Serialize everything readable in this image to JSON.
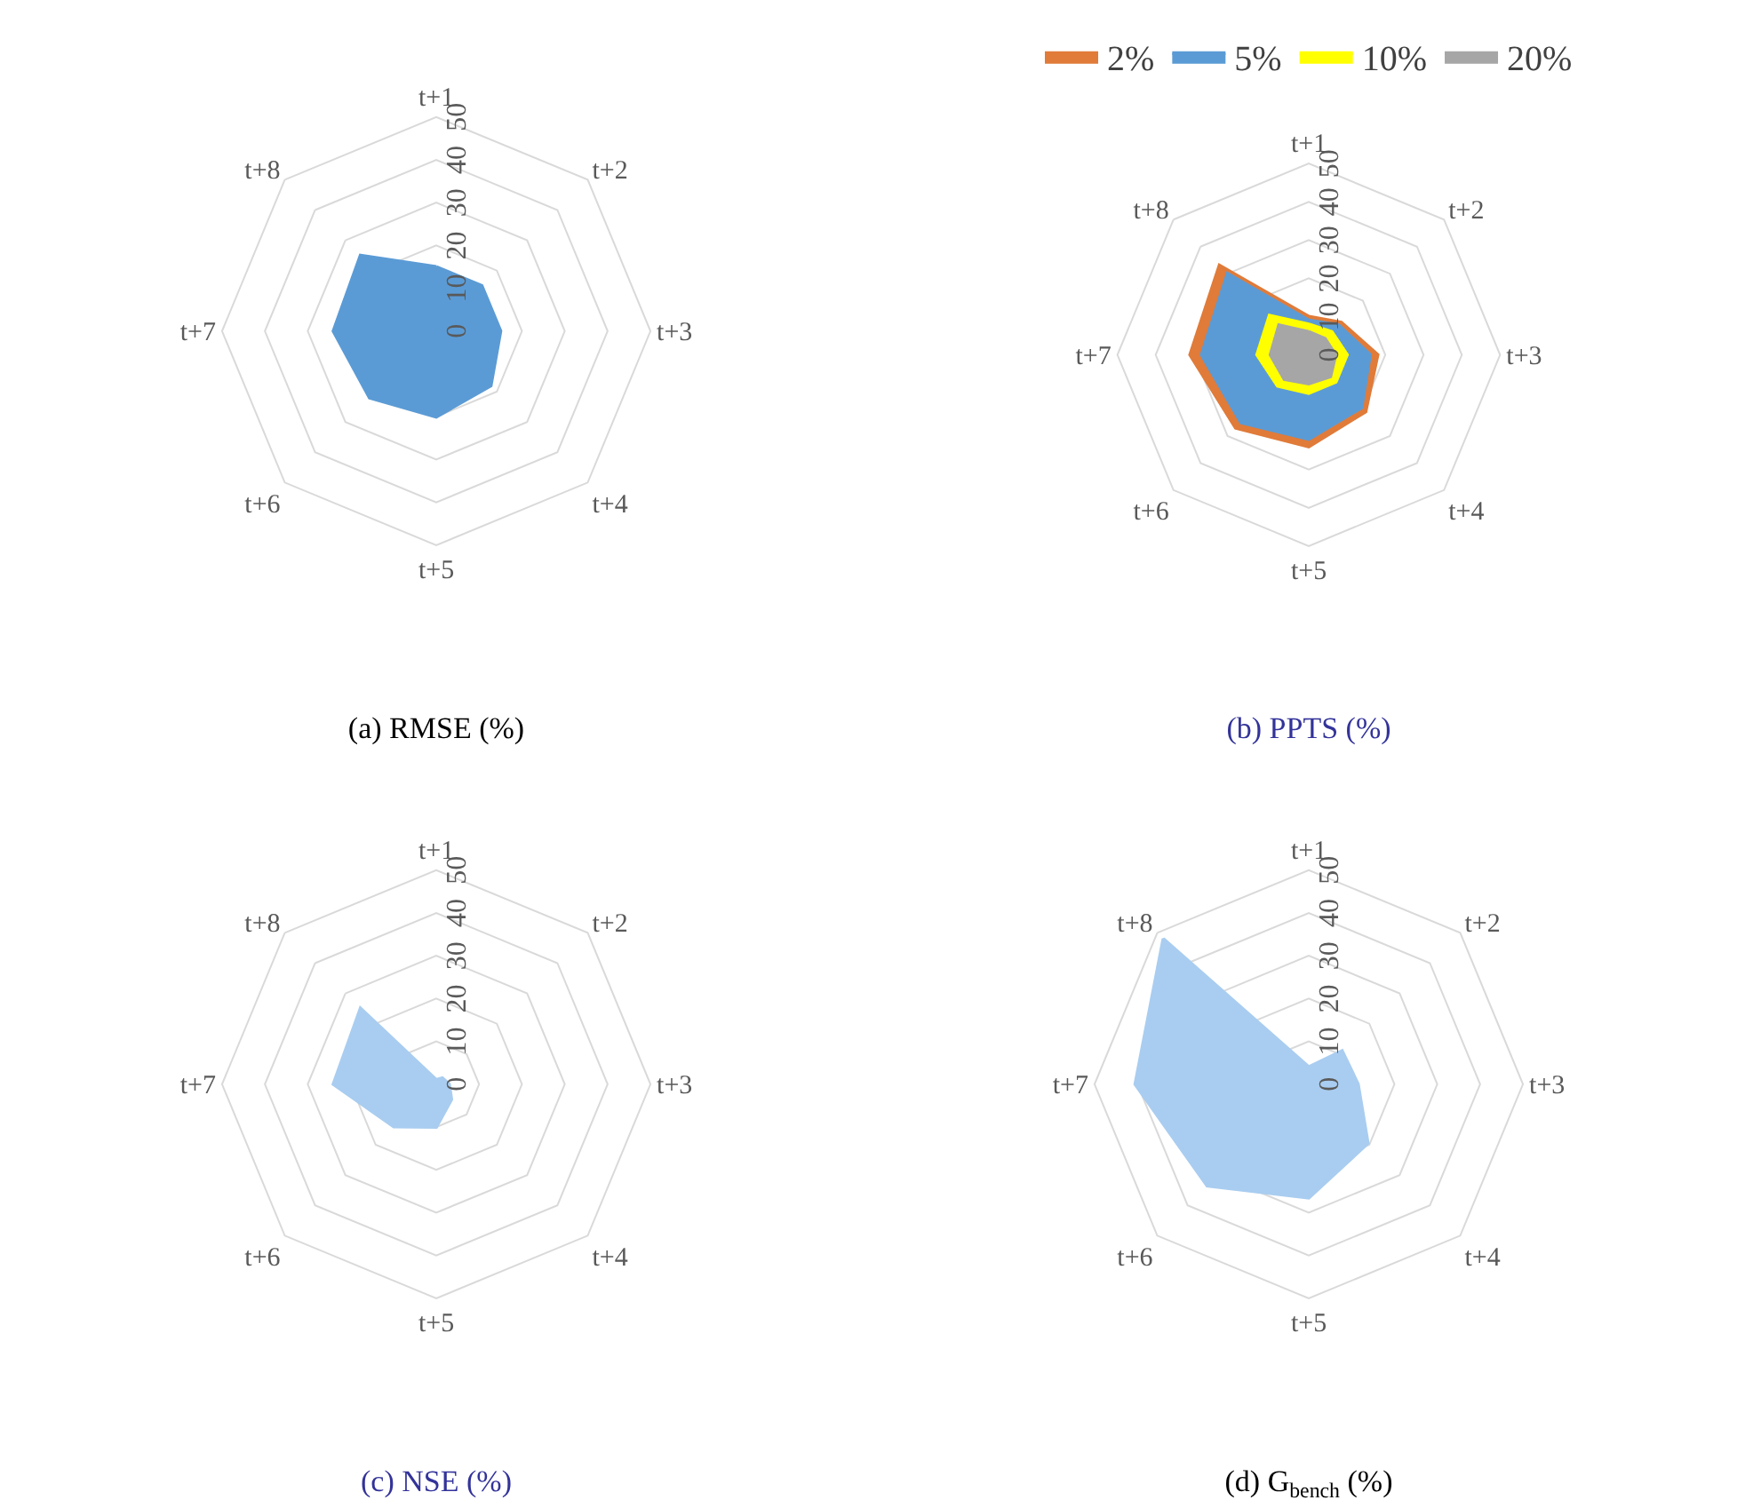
{
  "chart_data": [
    {
      "type": "radar",
      "title": "(a) RMSE (%)",
      "categories": [
        "t+1",
        "t+2",
        "t+3",
        "t+4",
        "t+5",
        "t+6",
        "t+7",
        "t+8"
      ],
      "ylim": [
        0,
        50
      ],
      "yticks": [
        0,
        10,
        20,
        30,
        40,
        50
      ],
      "grid": true,
      "legend": false,
      "series": [
        {
          "color": "#5b9bd5",
          "values": [
            15,
            15,
            15,
            18,
            20,
            22,
            24,
            25
          ]
        }
      ]
    },
    {
      "type": "radar",
      "title": "(b) PPTS (%)",
      "categories": [
        "t+1",
        "t+2",
        "t+3",
        "t+4",
        "t+5",
        "t+6",
        "t+7",
        "t+8"
      ],
      "ylim": [
        0,
        50
      ],
      "yticks": [
        0,
        10,
        20,
        30,
        40,
        50
      ],
      "grid": true,
      "legend": "top",
      "series": [
        {
          "name": "2%",
          "color": "#e07b39",
          "values": [
            10,
            12,
            18,
            21,
            24,
            27,
            31,
            33
          ]
        },
        {
          "name": "5%",
          "color": "#5b9bd5",
          "values": [
            9,
            11,
            16,
            19.5,
            22,
            25,
            28,
            30
          ]
        },
        {
          "name": "10%",
          "color": "#ffff00",
          "values": [
            8,
            8.5,
            10,
            10,
            10,
            11.5,
            13.5,
            14.5
          ]
        },
        {
          "name": "20%",
          "color": "#a6a6a6",
          "values": [
            6,
            6,
            7,
            8,
            7.5,
            9,
            10,
            11
          ]
        }
      ]
    },
    {
      "type": "radar",
      "title": "(c) NSE (%)",
      "categories": [
        "t+1",
        "t+2",
        "t+3",
        "t+4",
        "t+5",
        "t+6",
        "t+7",
        "t+8"
      ],
      "ylim": [
        0,
        50
      ],
      "yticks": [
        0,
        10,
        20,
        30,
        40,
        50
      ],
      "grid": true,
      "legend": false,
      "series": [
        {
          "color": "#a9cdf0",
          "values": [
            1,
            2,
            3,
            5,
            10,
            14,
            24,
            25
          ]
        }
      ]
    },
    {
      "type": "radar",
      "title": "(d) G$_{bench}$ (%)",
      "categories": [
        "t+1",
        "t+2",
        "t+3",
        "t+4",
        "t+5",
        "t+6",
        "t+7",
        "t+8"
      ],
      "ylim": [
        0,
        50
      ],
      "yticks": [
        0,
        10,
        20,
        30,
        40,
        50
      ],
      "grid": true,
      "legend": false,
      "series": [
        {
          "color": "#a9cdf0",
          "values": [
            4,
            11,
            11.5,
            19.5,
            26.5,
            33.5,
            40.5,
            48
          ]
        }
      ]
    }
  ]
}
